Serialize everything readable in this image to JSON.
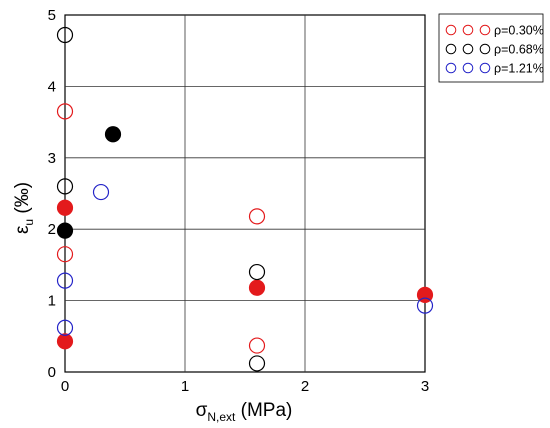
{
  "chart_data": {
    "type": "scatter",
    "xlabel": {
      "base": "σ",
      "sub": "N,ext",
      "unit": " (MPa)"
    },
    "ylabel": {
      "base": "ε",
      "sub": "u",
      "unit": " (‰)"
    },
    "xlim": [
      0,
      3
    ],
    "ylim": [
      0,
      5
    ],
    "x_ticks": [
      "0",
      "1",
      "2",
      "3"
    ],
    "y_ticks": [
      "0",
      "1",
      "2",
      "3",
      "4",
      "5"
    ],
    "grid": true,
    "legend_position": "top-right, outside plot",
    "series": [
      {
        "name": "ρ=0.30%",
        "color": "#e31a1c",
        "points": [
          {
            "x": 0,
            "y": 3.65,
            "filled": false
          },
          {
            "x": 0,
            "y": 2.3,
            "filled": true
          },
          {
            "x": 0,
            "y": 1.65,
            "filled": false
          },
          {
            "x": 0,
            "y": 0.43,
            "filled": true
          },
          {
            "x": 1.6,
            "y": 2.18,
            "filled": false
          },
          {
            "x": 1.6,
            "y": 1.18,
            "filled": true
          },
          {
            "x": 1.6,
            "y": 0.37,
            "filled": false
          },
          {
            "x": 3.0,
            "y": 1.08,
            "filled": true
          }
        ]
      },
      {
        "name": "ρ=0.68%",
        "color": "#000000",
        "points": [
          {
            "x": 0,
            "y": 4.72,
            "filled": false
          },
          {
            "x": 0,
            "y": 2.6,
            "filled": false
          },
          {
            "x": 0,
            "y": 1.98,
            "filled": true
          },
          {
            "x": 0.4,
            "y": 3.33,
            "filled": true
          },
          {
            "x": 1.6,
            "y": 1.4,
            "filled": false
          },
          {
            "x": 1.6,
            "y": 0.12,
            "filled": false
          }
        ]
      },
      {
        "name": "ρ=1.21%",
        "color": "#2424c8",
        "points": [
          {
            "x": 0,
            "y": 1.28,
            "filled": false
          },
          {
            "x": 0,
            "y": 0.62,
            "filled": false
          },
          {
            "x": 0.3,
            "y": 2.52,
            "filled": false
          },
          {
            "x": 3.0,
            "y": 0.93,
            "filled": false
          }
        ]
      }
    ]
  }
}
